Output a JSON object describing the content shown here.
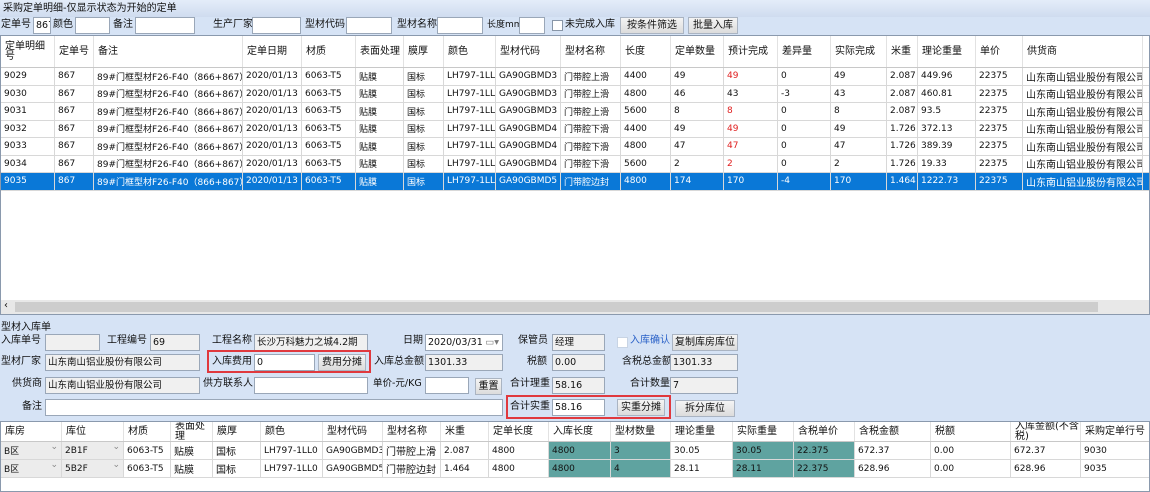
{
  "title": "采购定单明细-仅显示状态为开始的定单",
  "filter": {
    "order_no_label": "定单号",
    "order_no_value": "867",
    "color_label": "颜色",
    "color_value": "",
    "remark_label": "备注",
    "remark_value": "",
    "maker_label": "生产厂家",
    "maker_value": "",
    "code_label": "型材代码",
    "code_value": "",
    "name_label": "型材名称",
    "name_value": "",
    "length_label": "长度mm",
    "length_value": "",
    "unfinished_label": "未完成入库",
    "unfinished_checked": false,
    "filter_button": "按条件筛选",
    "batch_button": "批量入库"
  },
  "order_table": {
    "columns": [
      "定单明细号",
      "定单号",
      "备注",
      "定单日期",
      "材质",
      "表面处理",
      "膜厚",
      "颜色",
      "型材代码",
      "型材名称",
      "长度",
      "定单数量",
      "预计完成",
      "差异量",
      "实际完成",
      "米重",
      "理论重量",
      "单价",
      "供货商",
      ""
    ],
    "rows": [
      [
        "9029",
        "867",
        "89#门框型材F26-F40（866+867）",
        "2020/01/13",
        "6063-T5",
        "贴膜",
        "国标",
        "LH797-1LL0",
        "GA90GBMD3",
        "门带腔上滑",
        "4400",
        "49",
        "49",
        "0",
        "49",
        "2.087",
        "449.96",
        "22375",
        "山东南山铝业股份有限公司",
        ""
      ],
      [
        "9030",
        "867",
        "89#门框型材F26-F40（866+867）",
        "2020/01/13",
        "6063-T5",
        "贴膜",
        "国标",
        "LH797-1LL0",
        "GA90GBMD3",
        "门带腔上滑",
        "4800",
        "46",
        "43",
        "-3",
        "43",
        "2.087",
        "460.81",
        "22375",
        "山东南山铝业股份有限公司",
        ""
      ],
      [
        "9031",
        "867",
        "89#门框型材F26-F40（866+867）",
        "2020/01/13",
        "6063-T5",
        "贴膜",
        "国标",
        "LH797-1LL0",
        "GA90GBMD3",
        "门带腔上滑",
        "5600",
        "8",
        "8",
        "0",
        "8",
        "2.087",
        "93.5",
        "22375",
        "山东南山铝业股份有限公司",
        ""
      ],
      [
        "9032",
        "867",
        "89#门框型材F26-F40（866+867）",
        "2020/01/13",
        "6063-T5",
        "贴膜",
        "国标",
        "LH797-1LL0",
        "GA90GBMD4",
        "门带腔下滑",
        "4400",
        "49",
        "49",
        "0",
        "49",
        "1.726",
        "372.13",
        "22375",
        "山东南山铝业股份有限公司",
        ""
      ],
      [
        "9033",
        "867",
        "89#门框型材F26-F40（866+867）",
        "2020/01/13",
        "6063-T5",
        "贴膜",
        "国标",
        "LH797-1LL0",
        "GA90GBMD4",
        "门带腔下滑",
        "4800",
        "47",
        "47",
        "0",
        "47",
        "1.726",
        "389.39",
        "22375",
        "山东南山铝业股份有限公司",
        ""
      ],
      [
        "9034",
        "867",
        "89#门框型材F26-F40（866+867）",
        "2020/01/13",
        "6063-T5",
        "贴膜",
        "国标",
        "LH797-1LL0",
        "GA90GBMD4",
        "门带腔下滑",
        "5600",
        "2",
        "2",
        "0",
        "2",
        "1.726",
        "19.33",
        "22375",
        "山东南山铝业股份有限公司",
        ""
      ],
      [
        "9035",
        "867",
        "89#门框型材F26-F40（866+867）",
        "2020/01/13",
        "6063-T5",
        "贴膜",
        "国标",
        "LH797-1LL0",
        "GA90GBMD5",
        "门带腔边封",
        "4800",
        "174",
        "170",
        "-4",
        "170",
        "1.464",
        "1222.73",
        "22375",
        "山东南山铝业股份有限公司",
        ""
      ]
    ],
    "red_rows": [
      0,
      2,
      3,
      4,
      5
    ],
    "selected_row": 6
  },
  "form": {
    "section_title": "型材入库单",
    "receipt_no_label": "入库单号",
    "receipt_no": "",
    "project_no_label": "工程编号",
    "project_no": "69",
    "project_name_label": "工程名称",
    "project_name": "长沙万科魅力之城4.2期",
    "date_label": "日期",
    "date": "2020/03/31",
    "keeper_label": "保管员",
    "keeper": "经理",
    "confirm_label": "入库确认",
    "confirm_checked": false,
    "copy_button": "复制库房库位",
    "maker_label": "型材厂家",
    "maker": "山东南山铝业股份有限公司",
    "fee_label": "入库费用",
    "fee": "0",
    "fee_button": "费用分摊",
    "total_label": "入库总金额",
    "total": "1301.33",
    "tax_label": "税额",
    "tax": "0.00",
    "total_tax_label": "含税总金额",
    "total_tax": "1301.33",
    "supplier_label": "供货商",
    "supplier": "山东南山铝业股份有限公司",
    "contact_label": "供方联系人",
    "contact": "",
    "unit_price_label": "单价-元/KG",
    "unit_price": "",
    "reset_button": "重置",
    "theory_weight_label": "合计理重",
    "theory_weight": "58.16",
    "qty_label": "合计数量",
    "qty": "7",
    "remark_label": "备注",
    "remark": "",
    "actual_weight_label": "合计实重",
    "actual_weight": "58.16",
    "weight_split_button": "实重分摊",
    "split_location_button": "拆分库位"
  },
  "receipt_table": {
    "columns": [
      "库房",
      "库位",
      "材质",
      "表面处理",
      "膜厚",
      "颜色",
      "型材代码",
      "型材名称",
      "米重",
      "定单长度",
      "入库长度",
      "型材数量",
      "理论重量",
      "实际重量",
      "含税单价",
      "含税金额",
      "税额",
      "入库金额(不含税)",
      "采购定单行号"
    ],
    "rows": [
      [
        "B区",
        "2B1F",
        "6063-T5",
        "贴膜",
        "国标",
        "LH797-1LL0",
        "GA90GBMD3",
        "门带腔上滑",
        "2.087",
        "4800",
        "4800",
        "3",
        "30.05",
        "30.05",
        "22.375",
        "672.37",
        "0.00",
        "672.37",
        "9030"
      ],
      [
        "B区",
        "5B2F",
        "6063-T5",
        "贴膜",
        "国标",
        "LH797-1LL0",
        "GA90GBMD5",
        "门带腔边封",
        "1.464",
        "4800",
        "4800",
        "4",
        "28.11",
        "28.11",
        "22.375",
        "628.96",
        "0.00",
        "628.96",
        "9035"
      ]
    ],
    "editable_color": "#5fa3a0"
  }
}
